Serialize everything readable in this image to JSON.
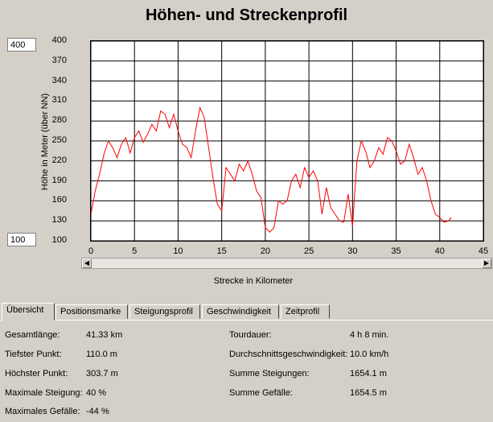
{
  "title": "Höhen- und Streckenprofil",
  "range": {
    "max": "400",
    "min": "100"
  },
  "chart_data": {
    "type": "line",
    "ylabel": "Höhe in Meter (über NN)",
    "xlabel": "Strecke in Kilometer",
    "xlim": [
      0,
      45
    ],
    "ylim": [
      100,
      400
    ],
    "grid": true,
    "y_ticks": [
      "400",
      "370",
      "340",
      "310",
      "280",
      "250",
      "220",
      "190",
      "160",
      "130",
      "100"
    ],
    "x_ticks": [
      "0",
      "5",
      "10",
      "15",
      "20",
      "25",
      "30",
      "35",
      "40",
      "45"
    ],
    "series": [
      {
        "color": "#ff0000",
        "x": [
          0,
          0.5,
          1,
          1.5,
          2,
          2.5,
          3,
          3.5,
          4,
          4.5,
          5,
          5.5,
          6,
          6.5,
          7,
          7.5,
          8,
          8.5,
          9,
          9.5,
          10,
          10.5,
          11,
          11.5,
          12,
          12.5,
          13,
          13.5,
          14,
          14.5,
          15,
          15.5,
          16,
          16.5,
          17,
          17.5,
          18,
          18.5,
          19,
          19.5,
          20,
          20.5,
          21,
          21.5,
          22,
          22.5,
          23,
          23.5,
          24,
          24.5,
          25,
          25.5,
          26,
          26.5,
          27,
          27.5,
          28,
          28.5,
          29,
          29.5,
          30,
          30.5,
          31,
          31.5,
          32,
          32.5,
          33,
          33.5,
          34,
          34.5,
          35,
          35.5,
          36,
          36.5,
          37,
          37.5,
          38,
          38.5,
          39,
          39.5,
          40,
          40.5,
          41,
          41.33
        ],
        "y": [
          140,
          175,
          200,
          230,
          250,
          240,
          225,
          245,
          255,
          232,
          255,
          265,
          248,
          260,
          275,
          265,
          295,
          290,
          270,
          290,
          265,
          245,
          240,
          225,
          265,
          300,
          285,
          240,
          195,
          155,
          145,
          210,
          200,
          190,
          215,
          205,
          220,
          200,
          175,
          165,
          120,
          113,
          120,
          160,
          155,
          160,
          190,
          200,
          180,
          210,
          195,
          205,
          190,
          140,
          180,
          150,
          140,
          130,
          128,
          170,
          122,
          220,
          250,
          235,
          210,
          220,
          240,
          230,
          255,
          250,
          235,
          215,
          220,
          245,
          225,
          200,
          210,
          190,
          160,
          140,
          135,
          128,
          130,
          135
        ]
      }
    ]
  },
  "tabs": [
    {
      "label": "Übersicht",
      "active": true
    },
    {
      "label": "Positionsmarke"
    },
    {
      "label": "Steigungsprofil"
    },
    {
      "label": "Geschwindigkeit"
    },
    {
      "label": "Zeitprofil"
    }
  ],
  "stats_left": [
    {
      "label": "Gesamtlänge:",
      "value": "41.33 km"
    },
    {
      "label": "Tiefster Punkt:",
      "value": "110.0 m"
    },
    {
      "label": "Höchster Punkt:",
      "value": "303.7 m"
    },
    {
      "label": "Maximale Steigung:",
      "value": "40 %"
    },
    {
      "label": "Maximales Gefälle:",
      "value": "-44 %"
    }
  ],
  "stats_right": [
    {
      "label": "Tourdauer:",
      "value": "4 h 8 min."
    },
    {
      "label": "Durchschnittsgeschwindigkeit:",
      "value": "10.0 km/h"
    },
    {
      "label": "Summe Steigungen:",
      "value": "1654.1 m"
    },
    {
      "label": "Summe Gefälle:",
      "value": "1654.5 m"
    }
  ]
}
